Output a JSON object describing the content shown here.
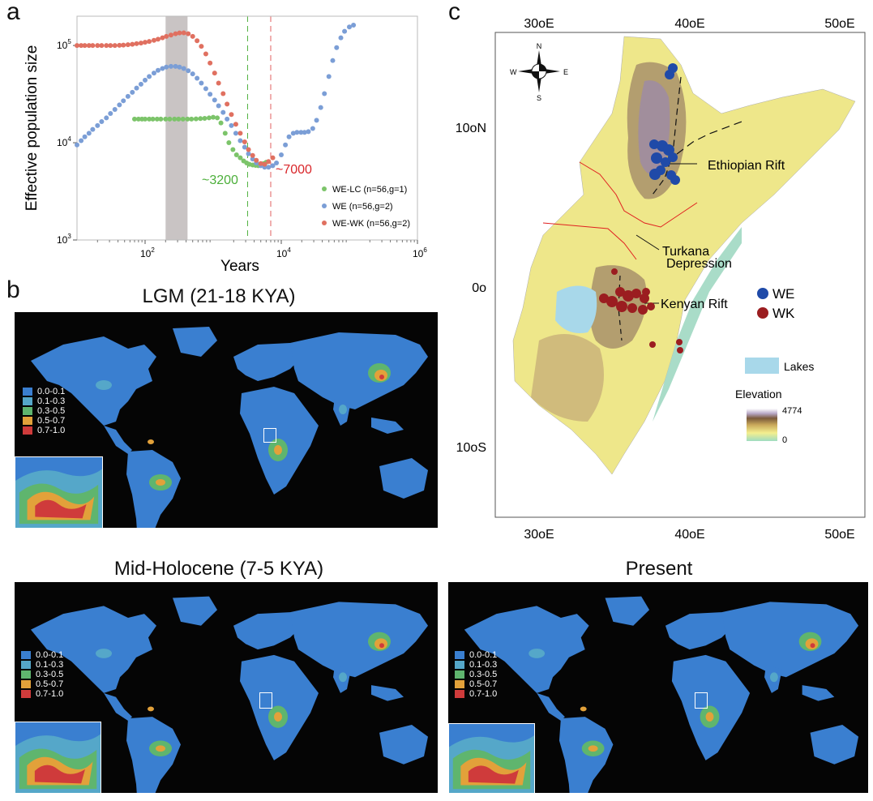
{
  "panels": {
    "a": "a",
    "b": "b",
    "c": "c"
  },
  "chart_data": {
    "type": "scatter",
    "xscale": "log",
    "yscale": "log",
    "xlabel": "Years",
    "ylabel": "Effective population size",
    "xlim": [
      10,
      1000000
    ],
    "ylim": [
      1000,
      200000
    ],
    "xticks": [
      {
        "value": 100,
        "base": "10",
        "exp": "2"
      },
      {
        "value": 10000,
        "base": "10",
        "exp": "4"
      },
      {
        "value": 1000000,
        "base": "10",
        "exp": "6"
      }
    ],
    "yticks": [
      {
        "value": 1000,
        "base": "10",
        "exp": "3"
      },
      {
        "value": 10000,
        "base": "10",
        "exp": "4"
      },
      {
        "value": 100000,
        "base": "10",
        "exp": "5"
      }
    ],
    "shaded_band": [
      200,
      420
    ],
    "vlines": [
      {
        "x": 3200,
        "color": "#4caf3a"
      },
      {
        "x": 7000,
        "color": "#e06060"
      }
    ],
    "annotations": [
      {
        "text": "~3200",
        "color": "#4caf3a"
      },
      {
        "text": "~7000",
        "color": "#d9262a"
      }
    ],
    "series": [
      {
        "name": "WE-LC (n=56,g=1)",
        "color": "#7cc46a",
        "x": [
          70,
          80,
          90,
          100,
          115,
          130,
          150,
          170,
          200,
          230,
          270,
          310,
          360,
          420,
          480,
          560,
          650,
          750,
          870,
          1000,
          1150,
          1300,
          1500,
          1700,
          1950,
          2200,
          2500,
          2800,
          3100,
          3400,
          3800,
          4200,
          4600,
          5000,
          5500,
          6000
        ],
        "y": [
          17500,
          17500,
          17500,
          17500,
          17500,
          17500,
          17500,
          17500,
          17500,
          17500,
          17500,
          17500,
          17500,
          17500,
          17500,
          17600,
          17700,
          17800,
          18000,
          18300,
          18000,
          16000,
          12500,
          10000,
          8500,
          7500,
          7000,
          6500,
          6200,
          6000,
          5900,
          5850,
          5800,
          5900,
          6100,
          6300
        ]
      },
      {
        "name": "WE (n=56,g=2)",
        "color": "#7b9ed6",
        "x": [
          10,
          11.5,
          13,
          15,
          17,
          20,
          23,
          27,
          31,
          36,
          42,
          48,
          56,
          65,
          75,
          87,
          100,
          115,
          135,
          155,
          180,
          205,
          240,
          280,
          320,
          370,
          430,
          500,
          580,
          670,
          780,
          900,
          1050,
          1200,
          1400,
          1600,
          1850,
          2150,
          2500,
          2900,
          3300,
          3800,
          4300,
          5000,
          5700,
          6500,
          7500,
          8500,
          10000,
          11500,
          13000,
          15000,
          17000,
          19500,
          22000,
          25000,
          29000,
          33000,
          38000,
          43000,
          50000,
          57000,
          65000,
          75000,
          85000,
          100000,
          115000
        ],
        "y": [
          9500,
          10500,
          11500,
          12500,
          13700,
          15000,
          16500,
          18000,
          20000,
          22000,
          24500,
          27000,
          30000,
          33000,
          36500,
          40000,
          44000,
          48000,
          52000,
          55500,
          58000,
          60000,
          61000,
          61000,
          60000,
          58000,
          55000,
          51000,
          46000,
          41000,
          36000,
          31500,
          27500,
          24000,
          20500,
          17500,
          15000,
          12500,
          10500,
          9000,
          7700,
          6800,
          6200,
          5800,
          5600,
          5600,
          5800,
          6200,
          7500,
          9500,
          11500,
          12500,
          12800,
          12800,
          12800,
          13000,
          14000,
          17000,
          23000,
          32000,
          48000,
          70000,
          95000,
          120000,
          140000,
          155000,
          162000
        ]
      },
      {
        "name": "WE-WK (n=56,g=2)",
        "color": "#e07060",
        "x": [
          10,
          11.5,
          13,
          15,
          17,
          20,
          23,
          27,
          31,
          36,
          42,
          48,
          56,
          65,
          75,
          87,
          100,
          115,
          135,
          155,
          180,
          205,
          240,
          280,
          320,
          370,
          430,
          500,
          580,
          670,
          780,
          900,
          1050,
          1200,
          1400,
          1600,
          1850,
          2150,
          2500,
          2900,
          3300,
          3800,
          4300,
          5000,
          5700,
          6500,
          7500
        ],
        "y": [
          100000,
          100000,
          100000,
          100000,
          100000,
          100000,
          100000,
          100000,
          100000,
          100000,
          100500,
          101000,
          102000,
          103000,
          104500,
          106000,
          108000,
          110000,
          113000,
          116000,
          120000,
          124000,
          128000,
          132000,
          134500,
          135000,
          132000,
          124000,
          112000,
          98000,
          82000,
          66000,
          52000,
          41000,
          32000,
          25000,
          19500,
          15500,
          12500,
          10200,
          8500,
          7400,
          6600,
          6100,
          6000,
          6400,
          7000
        ]
      }
    ]
  },
  "legend_b": [
    "0.0-0.1",
    "0.1-0.3",
    "0.3-0.5",
    "0.5-0.7",
    "0.7-1.0"
  ],
  "legend_colors": [
    "#3a7fd0",
    "#55a7c9",
    "#5fb56e",
    "#e2a13a",
    "#cf3b3b"
  ],
  "maps": {
    "lgm": {
      "title": "LGM (21-18 KYA)"
    },
    "holo": {
      "title": "Mid-Holocene (7-5 KYA)"
    },
    "present": {
      "title": "Present"
    }
  },
  "mapc": {
    "top_lon": [
      "30oE",
      "40oE",
      "50oE"
    ],
    "bottom_lon": [
      "30oE",
      "40oE",
      "50oE"
    ],
    "lat": [
      "10oN",
      "0o",
      "10oS"
    ],
    "compass": {
      "n": "N",
      "s": "S",
      "e": "E",
      "w": "W"
    },
    "labels": {
      "ethiopian": "Ethiopian Rift",
      "turkana1": "Turkana",
      "turkana2": "Depression",
      "kenyan": "Kenyan Rift"
    },
    "legend": {
      "we": "WE",
      "wk": "WK",
      "we_color": "#1f4aa8",
      "wk_color": "#9b1d20",
      "lakes": "Lakes",
      "lakes_color": "#a8d8ea",
      "elevation": "Elevation",
      "elev_max": "4774",
      "elev_min": "0"
    }
  }
}
